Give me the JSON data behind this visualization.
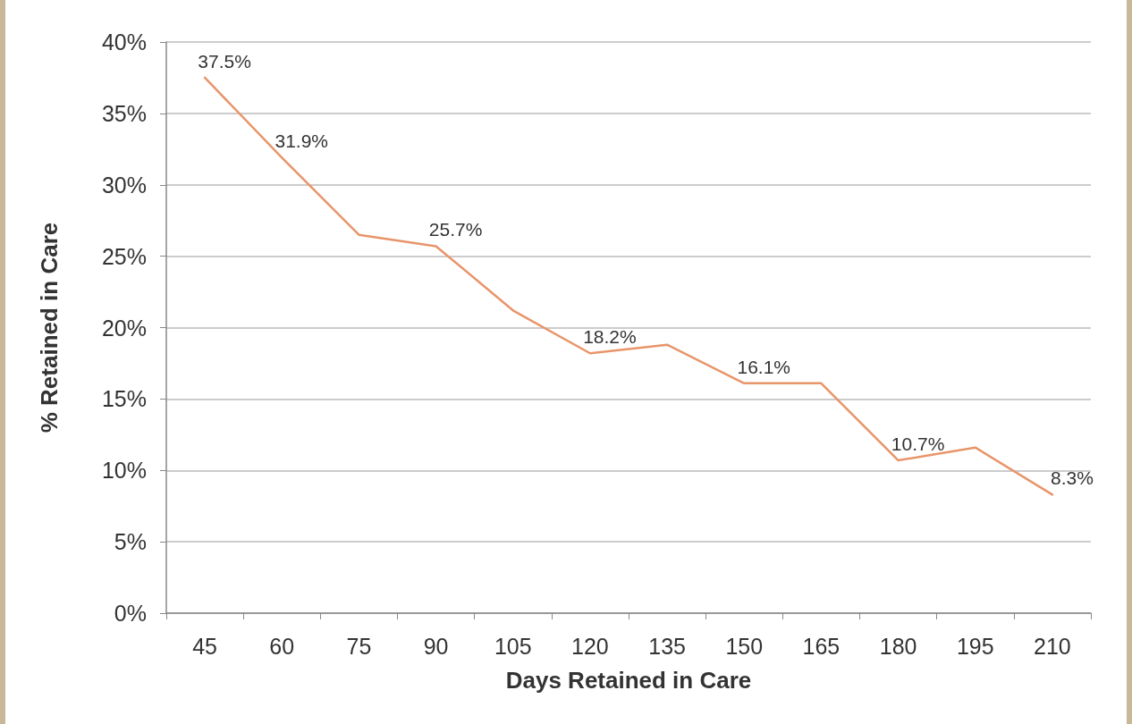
{
  "chart_data": {
    "type": "line",
    "xlabel": "Days Retained in Care",
    "ylabel": "% Retained in Care",
    "categories": [
      "45",
      "60",
      "75",
      "90",
      "105",
      "120",
      "135",
      "150",
      "165",
      "180",
      "195",
      "210"
    ],
    "series": [
      {
        "color": "#e8956a",
        "values": [
          37.5,
          31.9,
          26.5,
          25.7,
          21.2,
          18.2,
          18.8,
          16.1,
          16.1,
          10.7,
          11.6,
          8.3
        ],
        "value_labels": [
          "37.5%",
          "31.9%",
          null,
          "25.7%",
          null,
          "18.2%",
          null,
          "16.1%",
          null,
          "10.7%",
          null,
          "8.3%"
        ]
      }
    ],
    "ylim": [
      0,
      40
    ],
    "yticks": [
      {
        "value": 0,
        "label": "0%"
      },
      {
        "value": 5,
        "label": "5%"
      },
      {
        "value": 10,
        "label": "10%"
      },
      {
        "value": 15,
        "label": "15%"
      },
      {
        "value": 20,
        "label": "20%"
      },
      {
        "value": 25,
        "label": "25%"
      },
      {
        "value": 30,
        "label": "30%"
      },
      {
        "value": 35,
        "label": "35%"
      },
      {
        "value": 40,
        "label": "40%"
      }
    ],
    "grid": "y",
    "marker": "none"
  }
}
